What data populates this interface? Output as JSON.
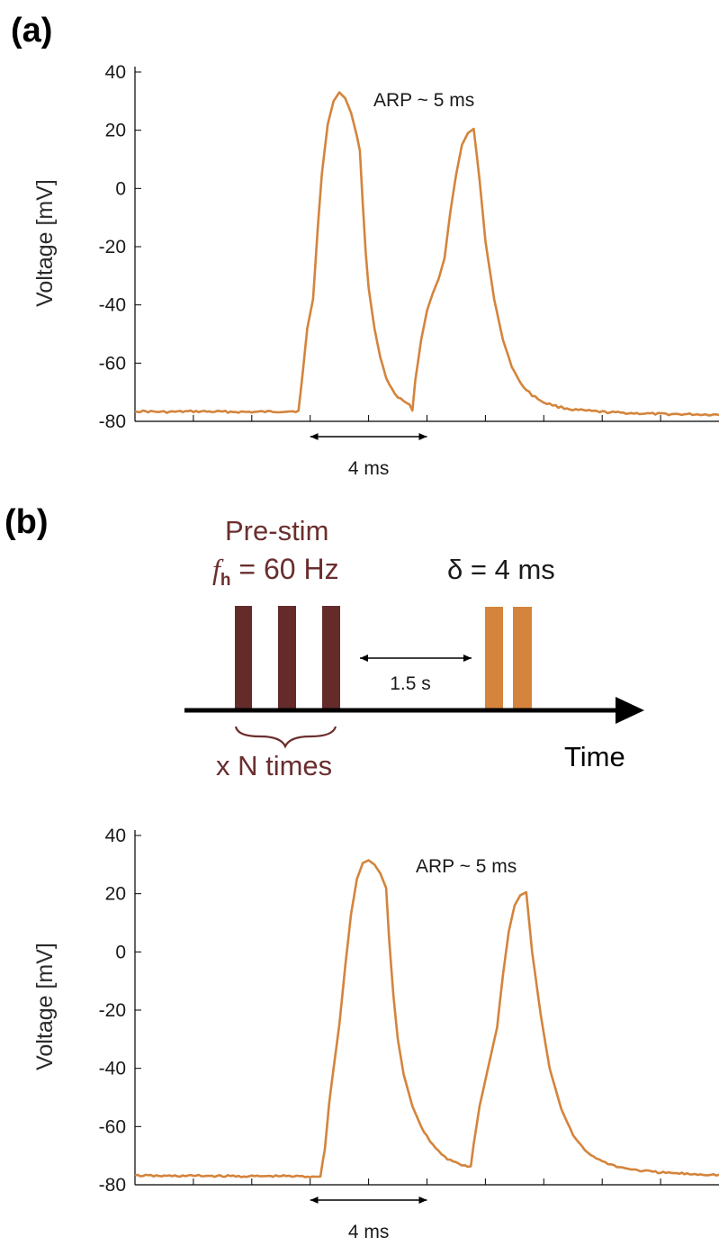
{
  "panels": {
    "a": "(a)",
    "b": "(b)"
  },
  "colors": {
    "trace": "#d4843c",
    "prestim_bar": "#652b2b",
    "probe_bar": "#d4843c",
    "label_dark": "#6b2e2e"
  },
  "chart_data": [
    {
      "type": "line",
      "panel": "a",
      "ylabel": "Voltage [mV]",
      "xlabel": "",
      "ylim": [
        -80,
        40
      ],
      "xlim": [
        0,
        20
      ],
      "yticks": [
        40,
        20,
        0,
        -20,
        -40,
        -60,
        -80
      ],
      "x_minor_ticks": [
        2,
        4,
        6,
        8,
        10,
        12,
        14,
        16,
        18
      ],
      "annotation": "ARP ~ 5 ms",
      "scalebar": {
        "label": "4 ms",
        "x0": 6,
        "x1": 10
      },
      "series": [
        {
          "points": [
            [
              0.0,
              -76.5
            ],
            [
              1.0,
              -76.8
            ],
            [
              2.0,
              -76.6
            ],
            [
              3.0,
              -76.7
            ],
            [
              4.0,
              -76.8
            ],
            [
              5.0,
              -76.6
            ],
            [
              5.6,
              -76.5
            ],
            [
              5.75,
              -63
            ],
            [
              5.9,
              -48
            ],
            [
              6.1,
              -38
            ],
            [
              6.25,
              -15
            ],
            [
              6.4,
              5
            ],
            [
              6.6,
              22
            ],
            [
              6.8,
              30
            ],
            [
              7.0,
              33
            ],
            [
              7.2,
              31
            ],
            [
              7.4,
              26
            ],
            [
              7.6,
              18
            ],
            [
              7.7,
              13
            ],
            [
              7.8,
              -5
            ],
            [
              7.9,
              -22
            ],
            [
              8.0,
              -34
            ],
            [
              8.2,
              -48
            ],
            [
              8.4,
              -58
            ],
            [
              8.6,
              -65
            ],
            [
              8.8,
              -69
            ],
            [
              9.0,
              -71.5
            ],
            [
              9.2,
              -73
            ],
            [
              9.4,
              -74.5
            ],
            [
              9.5,
              -76
            ],
            [
              9.6,
              -66
            ],
            [
              9.8,
              -52
            ],
            [
              10.0,
              -42
            ],
            [
              10.2,
              -36
            ],
            [
              10.4,
              -31
            ],
            [
              10.6,
              -24
            ],
            [
              10.8,
              -8
            ],
            [
              11.0,
              5
            ],
            [
              11.2,
              15
            ],
            [
              11.4,
              19
            ],
            [
              11.6,
              20.5
            ],
            [
              11.8,
              3
            ],
            [
              12.0,
              -18
            ],
            [
              12.3,
              -38
            ],
            [
              12.6,
              -52
            ],
            [
              12.9,
              -61
            ],
            [
              13.2,
              -67
            ],
            [
              13.6,
              -71
            ],
            [
              14.0,
              -73.5
            ],
            [
              14.5,
              -75
            ],
            [
              15.0,
              -76
            ],
            [
              16.0,
              -76.8
            ],
            [
              17.0,
              -77.2
            ],
            [
              18.0,
              -77.5
            ],
            [
              19.0,
              -77.6
            ],
            [
              20.0,
              -77.7
            ]
          ]
        }
      ]
    },
    {
      "type": "line",
      "panel": "b",
      "ylabel": "Voltage [mV]",
      "xlabel": "",
      "ylim": [
        -80,
        40
      ],
      "xlim": [
        0,
        20
      ],
      "yticks": [
        40,
        20,
        0,
        -20,
        -40,
        -60,
        -80
      ],
      "x_minor_ticks": [
        2,
        4,
        6,
        8,
        10,
        12,
        14,
        16,
        18
      ],
      "annotation": "ARP ~ 5 ms",
      "scalebar": {
        "label": "4 ms",
        "x0": 6,
        "x1": 10
      },
      "series": [
        {
          "points": [
            [
              0.0,
              -76.8
            ],
            [
              1.0,
              -77.0
            ],
            [
              2.0,
              -76.9
            ],
            [
              3.0,
              -77.0
            ],
            [
              4.0,
              -77.1
            ],
            [
              5.0,
              -77.0
            ],
            [
              6.0,
              -77.2
            ],
            [
              6.35,
              -77
            ],
            [
              6.5,
              -68
            ],
            [
              6.65,
              -52
            ],
            [
              6.8,
              -40
            ],
            [
              7.0,
              -25
            ],
            [
              7.2,
              -5
            ],
            [
              7.4,
              13
            ],
            [
              7.6,
              25
            ],
            [
              7.8,
              30.5
            ],
            [
              8.0,
              31.5
            ],
            [
              8.2,
              30
            ],
            [
              8.4,
              27
            ],
            [
              8.6,
              22
            ],
            [
              8.7,
              5
            ],
            [
              8.85,
              -15
            ],
            [
              9.0,
              -30
            ],
            [
              9.2,
              -42
            ],
            [
              9.5,
              -53
            ],
            [
              9.8,
              -60
            ],
            [
              10.1,
              -65
            ],
            [
              10.4,
              -68.5
            ],
            [
              10.7,
              -71
            ],
            [
              11.0,
              -72.5
            ],
            [
              11.3,
              -73.5
            ],
            [
              11.5,
              -74
            ],
            [
              11.6,
              -66
            ],
            [
              11.8,
              -53
            ],
            [
              12.0,
              -44
            ],
            [
              12.2,
              -35
            ],
            [
              12.4,
              -26
            ],
            [
              12.6,
              -8
            ],
            [
              12.8,
              7
            ],
            [
              13.0,
              16
            ],
            [
              13.2,
              19.5
            ],
            [
              13.4,
              20.5
            ],
            [
              13.6,
              0
            ],
            [
              13.9,
              -22
            ],
            [
              14.2,
              -40
            ],
            [
              14.6,
              -54
            ],
            [
              15.0,
              -63
            ],
            [
              15.5,
              -69
            ],
            [
              16.0,
              -72
            ],
            [
              16.6,
              -74
            ],
            [
              17.2,
              -75
            ],
            [
              18.0,
              -75.8
            ],
            [
              19.0,
              -76.3
            ],
            [
              20.0,
              -76.6
            ]
          ]
        }
      ]
    }
  ],
  "schematic": {
    "prestim_title": "Pre-stim",
    "freq_symbol": "f",
    "freq_subscript": "h",
    "freq_value": " = 60 Hz",
    "delta_text": "δ = 4 ms",
    "interval_label": "1.5 s",
    "repeat_label": "x N times",
    "time_label": "Time"
  }
}
